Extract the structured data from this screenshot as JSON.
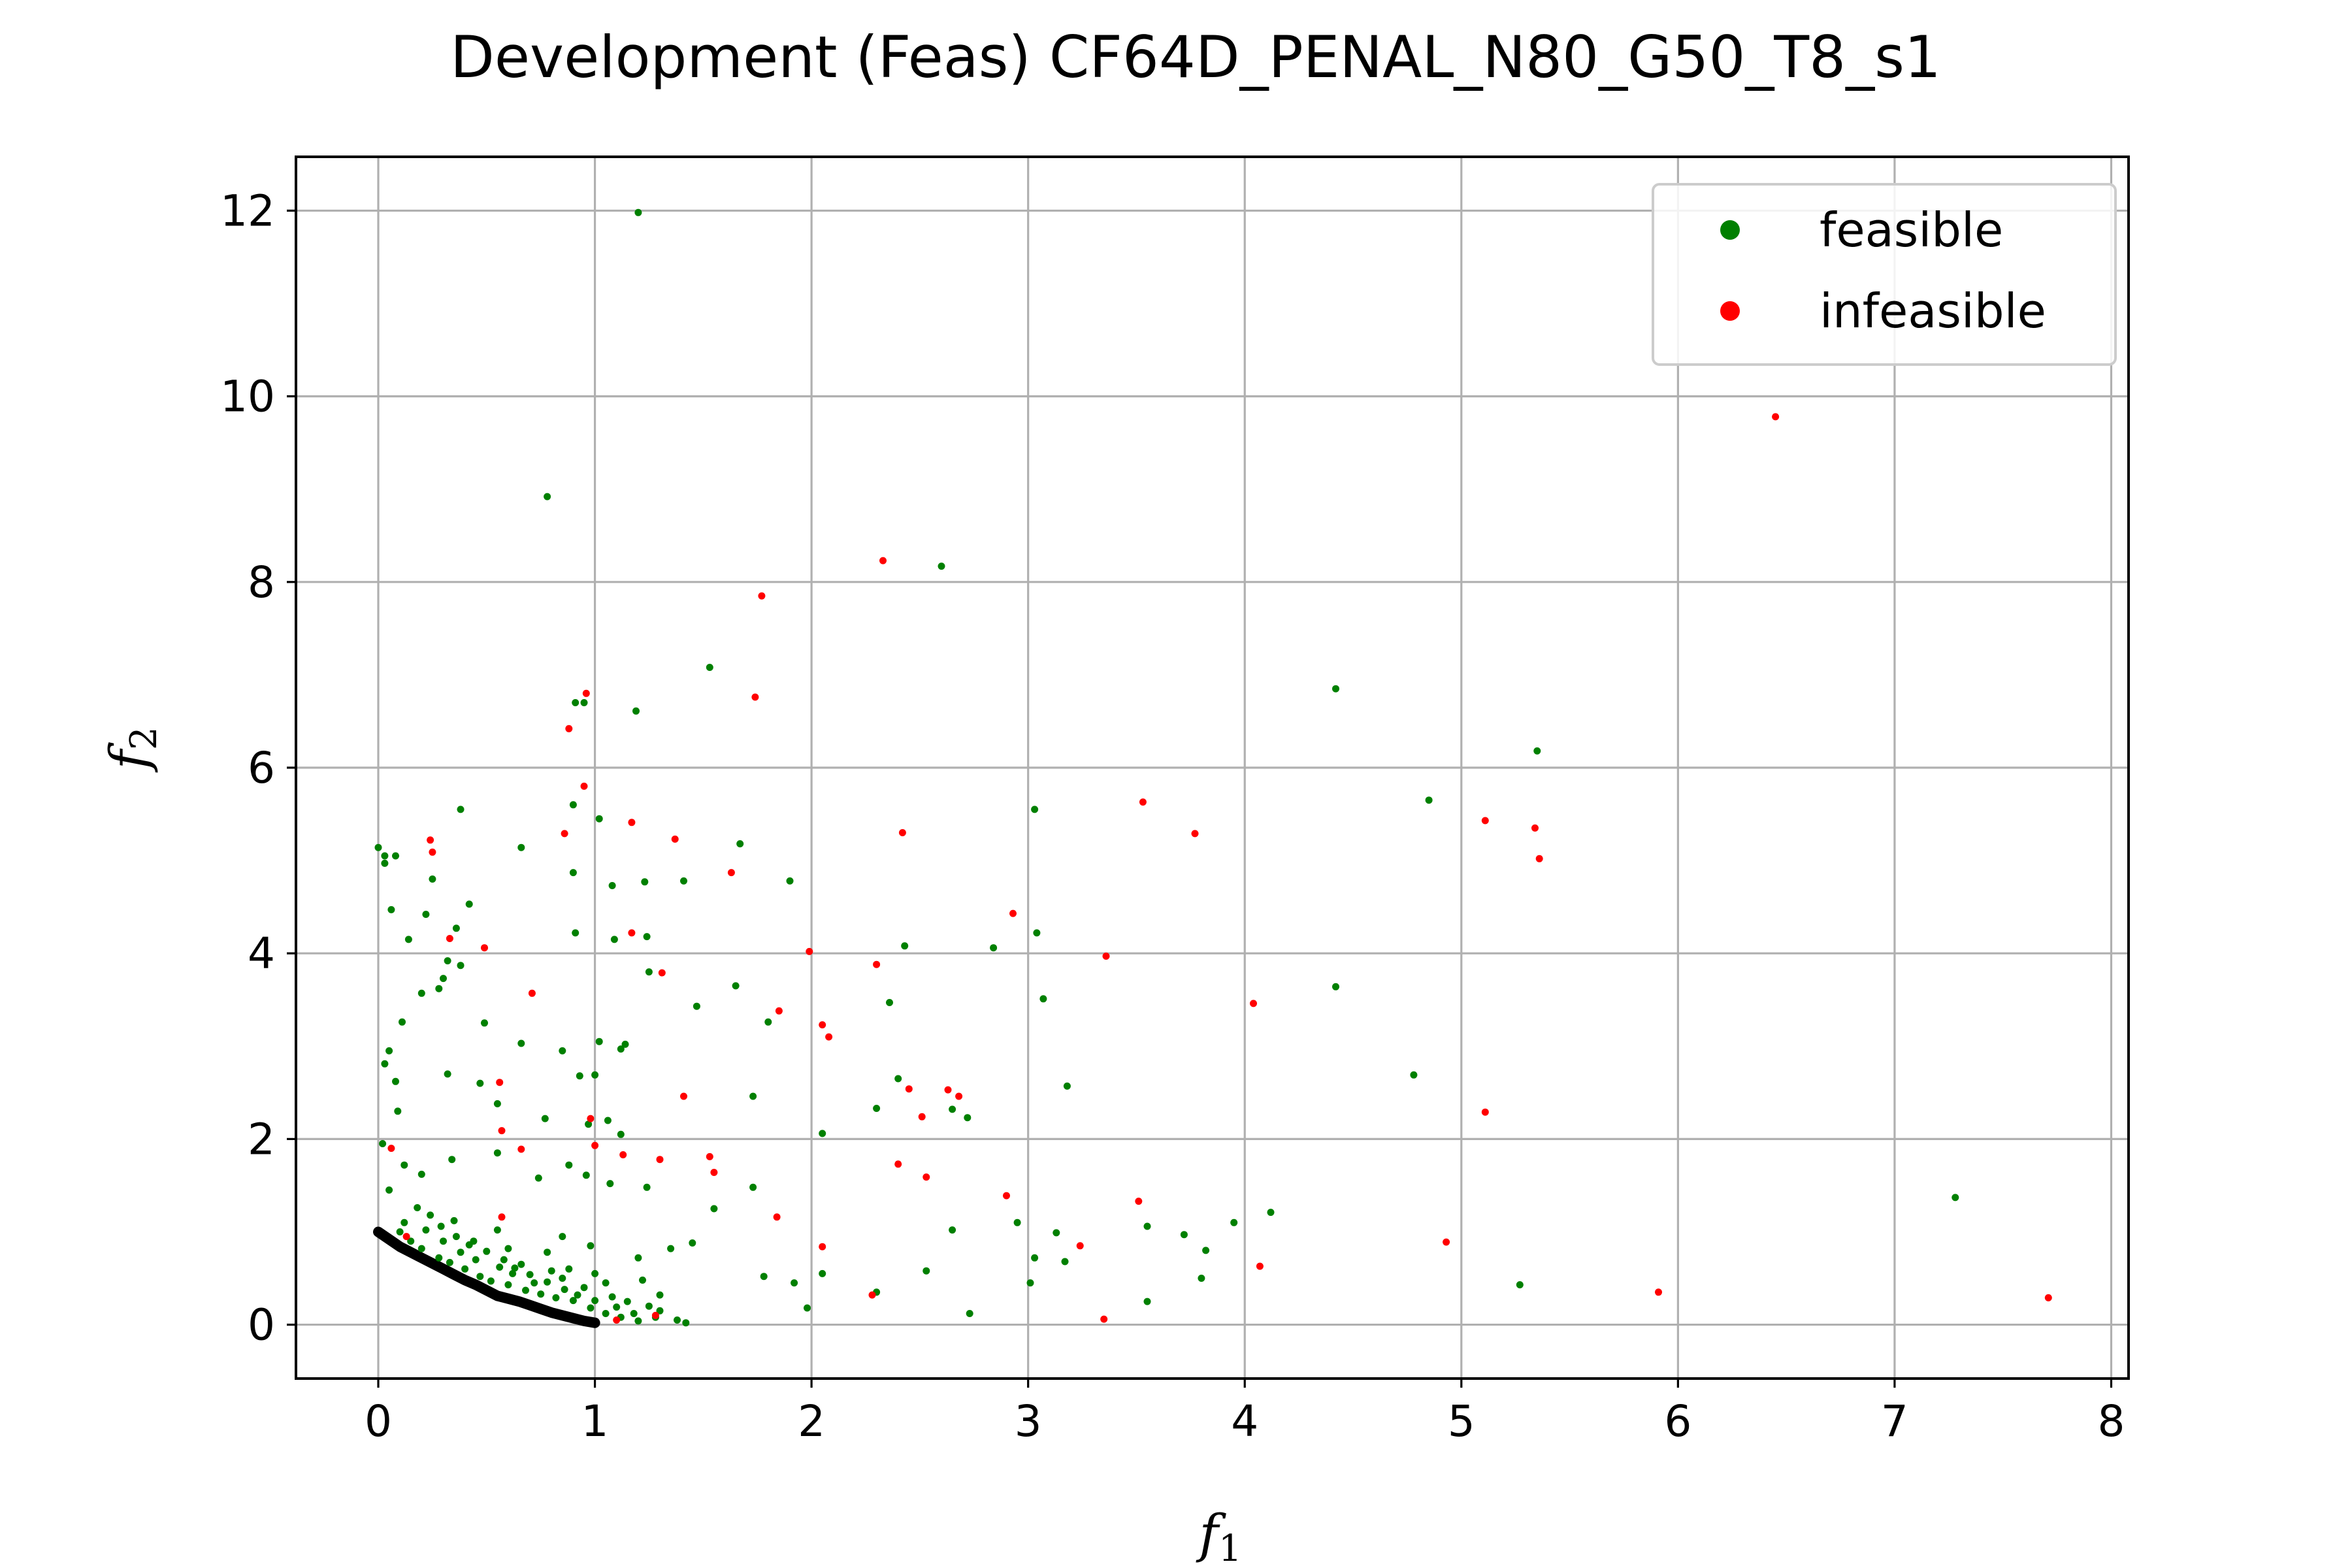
{
  "chart_data": {
    "type": "scatter",
    "title": "Development (Feas) CF64D_PENAL_N80_G50_T8_s1",
    "xlabel": "f",
    "xlabel_sub": "1",
    "ylabel": "f",
    "ylabel_sub": "2",
    "xlim": [
      -0.38,
      8.08
    ],
    "ylim": [
      -0.58,
      12.58
    ],
    "xticks": [
      0,
      1,
      2,
      3,
      4,
      5,
      6,
      7,
      8
    ],
    "xtick_labels": [
      "0",
      "1",
      "2",
      "3",
      "4",
      "5",
      "6",
      "7",
      "8"
    ],
    "yticks": [
      0,
      2,
      4,
      6,
      8,
      10,
      12
    ],
    "ytick_labels": [
      "0",
      "2",
      "4",
      "6",
      "8",
      "10",
      "12"
    ],
    "grid": true,
    "legend_position": "top-right",
    "colors": {
      "feasible": "#008000",
      "infeasible": "#ff0000",
      "front": "#000000"
    },
    "series": [
      {
        "name": "feasible",
        "color": "#008000",
        "points": [
          [
            1.2,
            11.98
          ],
          [
            0.78,
            8.92
          ],
          [
            2.6,
            8.17
          ],
          [
            1.53,
            7.08
          ],
          [
            4.42,
            6.85
          ],
          [
            0.91,
            6.7
          ],
          [
            0.95,
            6.7
          ],
          [
            1.19,
            6.61
          ],
          [
            5.35,
            6.18
          ],
          [
            4.85,
            5.65
          ],
          [
            3.03,
            5.55
          ],
          [
            0.38,
            5.55
          ],
          [
            0.9,
            5.6
          ],
          [
            1.02,
            5.45
          ],
          [
            1.67,
            5.18
          ],
          [
            0.66,
            5.14
          ],
          [
            0.0,
            5.14
          ],
          [
            0.03,
            5.05
          ],
          [
            0.08,
            5.05
          ],
          [
            0.03,
            4.97
          ],
          [
            0.25,
            4.8
          ],
          [
            0.9,
            4.87
          ],
          [
            1.08,
            4.73
          ],
          [
            1.23,
            4.77
          ],
          [
            1.41,
            4.78
          ],
          [
            1.9,
            4.78
          ],
          [
            0.42,
            4.53
          ],
          [
            0.06,
            4.47
          ],
          [
            0.22,
            4.42
          ],
          [
            0.36,
            4.27
          ],
          [
            0.14,
            4.15
          ],
          [
            0.91,
            4.22
          ],
          [
            1.09,
            4.15
          ],
          [
            1.24,
            4.18
          ],
          [
            2.43,
            4.08
          ],
          [
            2.84,
            4.06
          ],
          [
            3.04,
            4.22
          ],
          [
            0.32,
            3.92
          ],
          [
            0.38,
            3.87
          ],
          [
            0.3,
            3.73
          ],
          [
            0.28,
            3.62
          ],
          [
            0.2,
            3.57
          ],
          [
            0.49,
            3.25
          ],
          [
            0.11,
            3.26
          ],
          [
            1.25,
            3.8
          ],
          [
            1.47,
            3.43
          ],
          [
            1.65,
            3.65
          ],
          [
            1.8,
            3.26
          ],
          [
            2.36,
            3.47
          ],
          [
            3.07,
            3.51
          ],
          [
            4.42,
            3.64
          ],
          [
            0.05,
            2.95
          ],
          [
            0.66,
            3.03
          ],
          [
            0.85,
            2.95
          ],
          [
            1.02,
            3.05
          ],
          [
            1.12,
            2.97
          ],
          [
            1.14,
            3.02
          ],
          [
            0.03,
            2.81
          ],
          [
            0.08,
            2.62
          ],
          [
            0.32,
            2.7
          ],
          [
            0.47,
            2.6
          ],
          [
            0.93,
            2.68
          ],
          [
            1.0,
            2.69
          ],
          [
            1.73,
            2.46
          ],
          [
            2.4,
            2.65
          ],
          [
            3.18,
            2.57
          ],
          [
            4.78,
            2.69
          ],
          [
            0.09,
            2.3
          ],
          [
            0.55,
            2.38
          ],
          [
            0.77,
            2.22
          ],
          [
            0.97,
            2.16
          ],
          [
            1.06,
            2.2
          ],
          [
            1.12,
            2.05
          ],
          [
            2.05,
            2.06
          ],
          [
            2.3,
            2.33
          ],
          [
            2.65,
            2.32
          ],
          [
            2.72,
            2.23
          ],
          [
            0.02,
            1.95
          ],
          [
            0.12,
            1.72
          ],
          [
            0.2,
            1.62
          ],
          [
            0.34,
            1.78
          ],
          [
            0.55,
            1.85
          ],
          [
            0.74,
            1.58
          ],
          [
            0.88,
            1.72
          ],
          [
            0.96,
            1.61
          ],
          [
            1.07,
            1.52
          ],
          [
            1.24,
            1.48
          ],
          [
            1.55,
            1.25
          ],
          [
            1.73,
            1.48
          ],
          [
            3.55,
            1.06
          ],
          [
            3.95,
            1.1
          ],
          [
            4.12,
            1.21
          ],
          [
            7.28,
            1.37
          ],
          [
            3.72,
            0.97
          ],
          [
            0.05,
            1.45
          ],
          [
            0.35,
            1.12
          ],
          [
            0.55,
            1.02
          ],
          [
            0.85,
            0.95
          ],
          [
            1.2,
            0.72
          ],
          [
            1.35,
            0.82
          ],
          [
            1.45,
            0.88
          ],
          [
            1.78,
            0.52
          ],
          [
            1.92,
            0.45
          ],
          [
            2.05,
            0.55
          ],
          [
            2.3,
            0.35
          ],
          [
            2.53,
            0.58
          ],
          [
            2.73,
            0.12
          ],
          [
            2.65,
            1.02
          ],
          [
            2.95,
            1.1
          ],
          [
            3.01,
            0.45
          ],
          [
            3.03,
            0.72
          ],
          [
            3.13,
            0.99
          ],
          [
            3.17,
            0.68
          ],
          [
            3.55,
            0.25
          ],
          [
            3.82,
            0.8
          ],
          [
            3.8,
            0.5
          ],
          [
            5.27,
            0.43
          ],
          [
            1.98,
            0.18
          ],
          [
            1.3,
            0.32
          ],
          [
            1.05,
            0.45
          ],
          [
            0.18,
            1.26
          ],
          [
            0.24,
            1.18
          ],
          [
            0.29,
            1.06
          ],
          [
            0.36,
            0.95
          ],
          [
            0.42,
            0.86
          ],
          [
            0.5,
            0.79
          ],
          [
            0.58,
            0.7
          ],
          [
            0.63,
            0.61
          ],
          [
            0.7,
            0.54
          ],
          [
            0.78,
            0.46
          ],
          [
            0.86,
            0.38
          ],
          [
            0.92,
            0.32
          ],
          [
            1.0,
            0.26
          ],
          [
            1.1,
            0.19
          ],
          [
            1.18,
            0.12
          ],
          [
            1.28,
            0.08
          ],
          [
            1.38,
            0.05
          ],
          [
            1.42,
            0.02
          ],
          [
            0.1,
            1.0
          ],
          [
            0.15,
            0.9
          ],
          [
            0.2,
            0.82
          ],
          [
            0.28,
            0.72
          ],
          [
            0.33,
            0.67
          ],
          [
            0.4,
            0.6
          ],
          [
            0.47,
            0.52
          ],
          [
            0.52,
            0.47
          ],
          [
            0.6,
            0.43
          ],
          [
            0.68,
            0.37
          ],
          [
            0.75,
            0.33
          ],
          [
            0.82,
            0.29
          ],
          [
            0.9,
            0.26
          ],
          [
            0.98,
            0.18
          ],
          [
            1.05,
            0.12
          ],
          [
            1.12,
            0.08
          ],
          [
            1.2,
            0.04
          ],
          [
            0.12,
            1.1
          ],
          [
            0.22,
            1.02
          ],
          [
            0.38,
            0.78
          ],
          [
            0.45,
            0.7
          ],
          [
            0.62,
            0.55
          ],
          [
            0.72,
            0.45
          ],
          [
            0.85,
            0.5
          ],
          [
            0.95,
            0.4
          ],
          [
            1.08,
            0.3
          ],
          [
            1.15,
            0.25
          ],
          [
            1.25,
            0.2
          ],
          [
            1.3,
            0.15
          ],
          [
            0.3,
            0.9
          ],
          [
            0.44,
            0.9
          ],
          [
            0.56,
            0.62
          ],
          [
            0.66,
            0.65
          ],
          [
            0.8,
            0.58
          ],
          [
            0.88,
            0.6
          ],
          [
            1.0,
            0.55
          ],
          [
            1.22,
            0.48
          ],
          [
            0.98,
            0.85
          ],
          [
            0.78,
            0.78
          ],
          [
            0.6,
            0.82
          ]
        ]
      },
      {
        "name": "infeasible",
        "color": "#ff0000",
        "points": [
          [
            6.45,
            9.78
          ],
          [
            2.33,
            8.23
          ],
          [
            1.77,
            7.85
          ],
          [
            0.96,
            6.8
          ],
          [
            1.74,
            6.76
          ],
          [
            0.88,
            6.42
          ],
          [
            0.95,
            5.8
          ],
          [
            3.53,
            5.63
          ],
          [
            5.11,
            5.43
          ],
          [
            5.34,
            5.35
          ],
          [
            1.17,
            5.41
          ],
          [
            1.37,
            5.23
          ],
          [
            3.77,
            5.29
          ],
          [
            2.42,
            5.3
          ],
          [
            0.24,
            5.22
          ],
          [
            0.25,
            5.09
          ],
          [
            0.86,
            5.29
          ],
          [
            1.63,
            4.87
          ],
          [
            5.36,
            5.02
          ],
          [
            2.93,
            4.43
          ],
          [
            1.17,
            4.22
          ],
          [
            0.33,
            4.16
          ],
          [
            0.49,
            4.06
          ],
          [
            3.36,
            3.97
          ],
          [
            1.99,
            4.02
          ],
          [
            2.3,
            3.88
          ],
          [
            1.31,
            3.79
          ],
          [
            0.71,
            3.57
          ],
          [
            4.04,
            3.46
          ],
          [
            1.85,
            3.38
          ],
          [
            2.05,
            3.23
          ],
          [
            2.08,
            3.1
          ],
          [
            0.56,
            2.61
          ],
          [
            1.41,
            2.46
          ],
          [
            2.63,
            2.53
          ],
          [
            2.45,
            2.54
          ],
          [
            2.68,
            2.46
          ],
          [
            2.51,
            2.24
          ],
          [
            5.11,
            2.29
          ],
          [
            0.98,
            2.22
          ],
          [
            0.57,
            2.09
          ],
          [
            0.66,
            1.89
          ],
          [
            0.06,
            1.9
          ],
          [
            1.0,
            1.93
          ],
          [
            1.13,
            1.83
          ],
          [
            1.3,
            1.78
          ],
          [
            1.53,
            1.81
          ],
          [
            1.55,
            1.64
          ],
          [
            2.4,
            1.73
          ],
          [
            2.53,
            1.59
          ],
          [
            2.9,
            1.39
          ],
          [
            3.51,
            1.33
          ],
          [
            1.84,
            1.16
          ],
          [
            0.57,
            1.16
          ],
          [
            2.05,
            0.84
          ],
          [
            3.24,
            0.85
          ],
          [
            4.07,
            0.63
          ],
          [
            4.93,
            0.89
          ],
          [
            5.91,
            0.35
          ],
          [
            7.71,
            0.29
          ],
          [
            3.35,
            0.06
          ],
          [
            2.28,
            0.32
          ],
          [
            1.28,
            0.1
          ],
          [
            1.1,
            0.05
          ],
          [
            0.13,
            0.95
          ]
        ]
      },
      {
        "name": "front",
        "color": "#000000",
        "points": [
          [
            0.0,
            1.0
          ],
          [
            0.05,
            0.92
          ],
          [
            0.1,
            0.84
          ],
          [
            0.15,
            0.78
          ],
          [
            0.2,
            0.72
          ],
          [
            0.25,
            0.66
          ],
          [
            0.3,
            0.6
          ],
          [
            0.35,
            0.54
          ],
          [
            0.4,
            0.48
          ],
          [
            0.45,
            0.43
          ],
          [
            0.5,
            0.37
          ],
          [
            0.55,
            0.31
          ],
          [
            0.6,
            0.28
          ],
          [
            0.65,
            0.25
          ],
          [
            0.7,
            0.21
          ],
          [
            0.75,
            0.17
          ],
          [
            0.8,
            0.13
          ],
          [
            0.85,
            0.1
          ],
          [
            0.9,
            0.07
          ],
          [
            0.95,
            0.04
          ],
          [
            1.0,
            0.02
          ]
        ]
      }
    ]
  }
}
